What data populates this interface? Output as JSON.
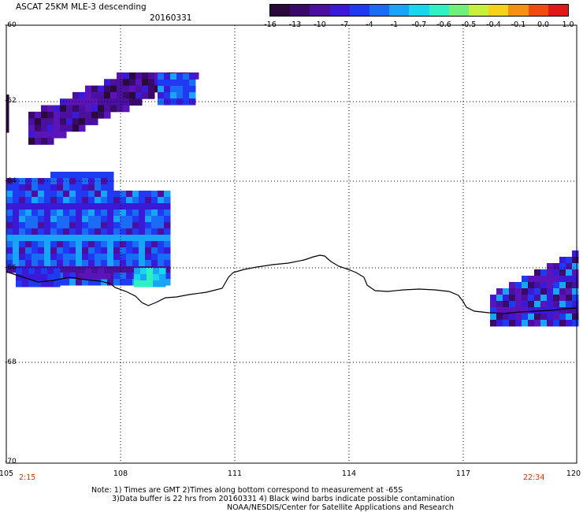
{
  "title": "ASCAT 25KM MLE-3 descending",
  "date": "20160331",
  "colorbar": {
    "labels": [
      "-16",
      "-13",
      "-10",
      "-7",
      "-4",
      "-1",
      "-0.7",
      "-0.6",
      "-0.5",
      "-0.4",
      "-0.1",
      "0.0",
      "1.0"
    ],
    "colors": [
      "#2a0a3a",
      "#3a0a6a",
      "#4b10a0",
      "#3a1ad6",
      "#1f3af0",
      "#1a6cf5",
      "#19a4f7",
      "#18d6ee",
      "#2ef0c0",
      "#6ef07a",
      "#c6f03a",
      "#f5d21a",
      "#f59010",
      "#f04a10",
      "#e01818"
    ]
  },
  "map": {
    "lat_labels": [
      "-60",
      "-62",
      "-64",
      "-66",
      "-68",
      "-70"
    ],
    "lon_labels": [
      "105",
      "108",
      "111",
      "114",
      "117",
      "120"
    ],
    "start_time": "2:15",
    "end_time": "22:34"
  },
  "notes": {
    "line1": "Note: 1) Times are GMT 2)Times along bottom correspond to measurement at -65S",
    "line2": "3)Data buffer is 22 hrs from 20160331 4) Black wind barbs indicate possible contamination",
    "line3": "NOAA/NESDIS/Center for Satellite Applications and Research"
  }
}
